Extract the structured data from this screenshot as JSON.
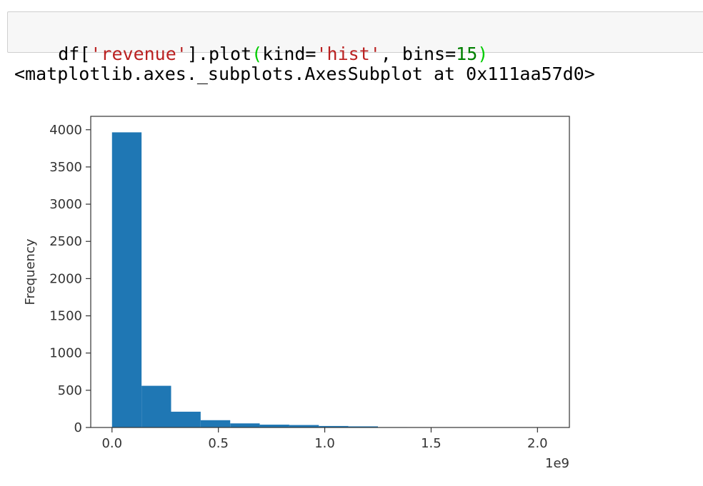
{
  "input_cell": {
    "code_tokens": [
      {
        "text": "df[",
        "kind": "plain"
      },
      {
        "text": "'revenue'",
        "kind": "str"
      },
      {
        "text": "].plot",
        "kind": "plain"
      },
      {
        "text": "(",
        "kind": "bracket"
      },
      {
        "text": "kind=",
        "kind": "plain"
      },
      {
        "text": "'hist'",
        "kind": "str"
      },
      {
        "text": ", bins=",
        "kind": "plain"
      },
      {
        "text": "15",
        "kind": "num"
      },
      {
        "text": ")",
        "kind": "bracket"
      }
    ]
  },
  "output": {
    "repr_text": "<matplotlib.axes._subplots.AxesSubplot at 0x111aa57d0>"
  },
  "colors": {
    "bar": "#1f77b4",
    "string": "#ba2121",
    "number": "#008000",
    "bracket": "#00cc00",
    "cell_bg": "#f7f7f7",
    "cell_border": "#cfcfcf"
  },
  "chart_data": {
    "type": "bar",
    "title": "",
    "xlabel": "",
    "ylabel": "Frequency",
    "x_offset_text": "1e9",
    "xlim": [
      -0.1,
      2.15
    ],
    "ylim": [
      0,
      4180
    ],
    "grid": false,
    "bin_edges": [
      0.0,
      0.1389,
      0.2778,
      0.4167,
      0.5556,
      0.6944,
      0.8333,
      0.9722,
      1.1111,
      1.25,
      1.3889,
      1.5278,
      1.6667,
      1.8056,
      1.9444,
      2.0833
    ],
    "values": [
      3965,
      560,
      212,
      98,
      55,
      38,
      33,
      20,
      15,
      5,
      3,
      2,
      2,
      1,
      1
    ],
    "x_ticks": [
      {
        "value": 0.0,
        "label": "0.0"
      },
      {
        "value": 0.5,
        "label": "0.5"
      },
      {
        "value": 1.0,
        "label": "1.0"
      },
      {
        "value": 1.5,
        "label": "1.5"
      },
      {
        "value": 2.0,
        "label": "2.0"
      }
    ],
    "y_ticks": [
      {
        "value": 0,
        "label": "0"
      },
      {
        "value": 500,
        "label": "500"
      },
      {
        "value": 1000,
        "label": "1000"
      },
      {
        "value": 1500,
        "label": "1500"
      },
      {
        "value": 2000,
        "label": "2000"
      },
      {
        "value": 2500,
        "label": "2500"
      },
      {
        "value": 3000,
        "label": "3000"
      },
      {
        "value": 3500,
        "label": "3500"
      },
      {
        "value": 4000,
        "label": "4000"
      }
    ]
  }
}
